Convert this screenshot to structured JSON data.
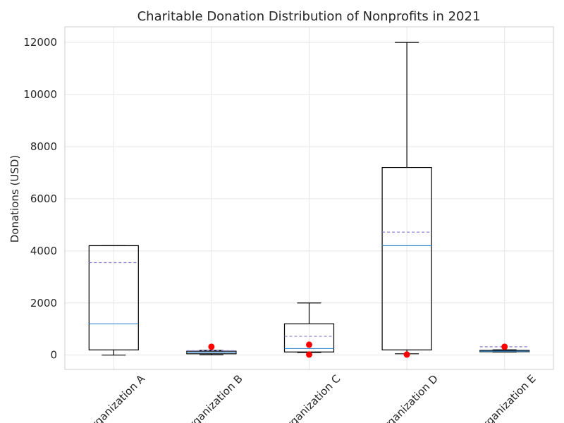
{
  "chart_data": {
    "type": "boxplot",
    "title": "Charitable Donation Distribution of Nonprofits in 2021",
    "xlabel": "",
    "ylabel": "Donations (USD)",
    "ylim": [
      -550,
      12600
    ],
    "yticks": [
      0,
      2000,
      4000,
      6000,
      8000,
      10000,
      12000
    ],
    "grid": true,
    "categories": [
      "Organization A",
      "Organization B",
      "Organization C",
      "Organization D",
      "Organization E"
    ],
    "boxes": [
      {
        "whisker_low": 0,
        "q1": 200,
        "median": 1200,
        "q3": 4200,
        "whisker_high": 4200,
        "mean": 3550,
        "outliers": []
      },
      {
        "whisker_low": 10,
        "q1": 50,
        "median": 100,
        "q3": 150,
        "whisker_high": 180,
        "mean": 170,
        "outliers": [
          320
        ]
      },
      {
        "whisker_low": 100,
        "q1": 120,
        "median": 250,
        "q3": 1200,
        "whisker_high": 2000,
        "mean": 720,
        "outliers": [
          400,
          20
        ]
      },
      {
        "whisker_low": 50,
        "q1": 200,
        "median": 4200,
        "q3": 7200,
        "whisker_high": 12000,
        "mean": 4720,
        "outliers": [
          20
        ]
      },
      {
        "whisker_low": 120,
        "q1": 130,
        "median": 150,
        "q3": 180,
        "whisker_high": 200,
        "mean": 320,
        "outliers": [
          320
        ]
      }
    ],
    "colors": {
      "box": "#000000",
      "median": "#3b8fd6",
      "mean": "#8a7fd0",
      "outlier": "#ff0000",
      "grid": "#e6e6e6",
      "frame": "#cccccc"
    }
  }
}
